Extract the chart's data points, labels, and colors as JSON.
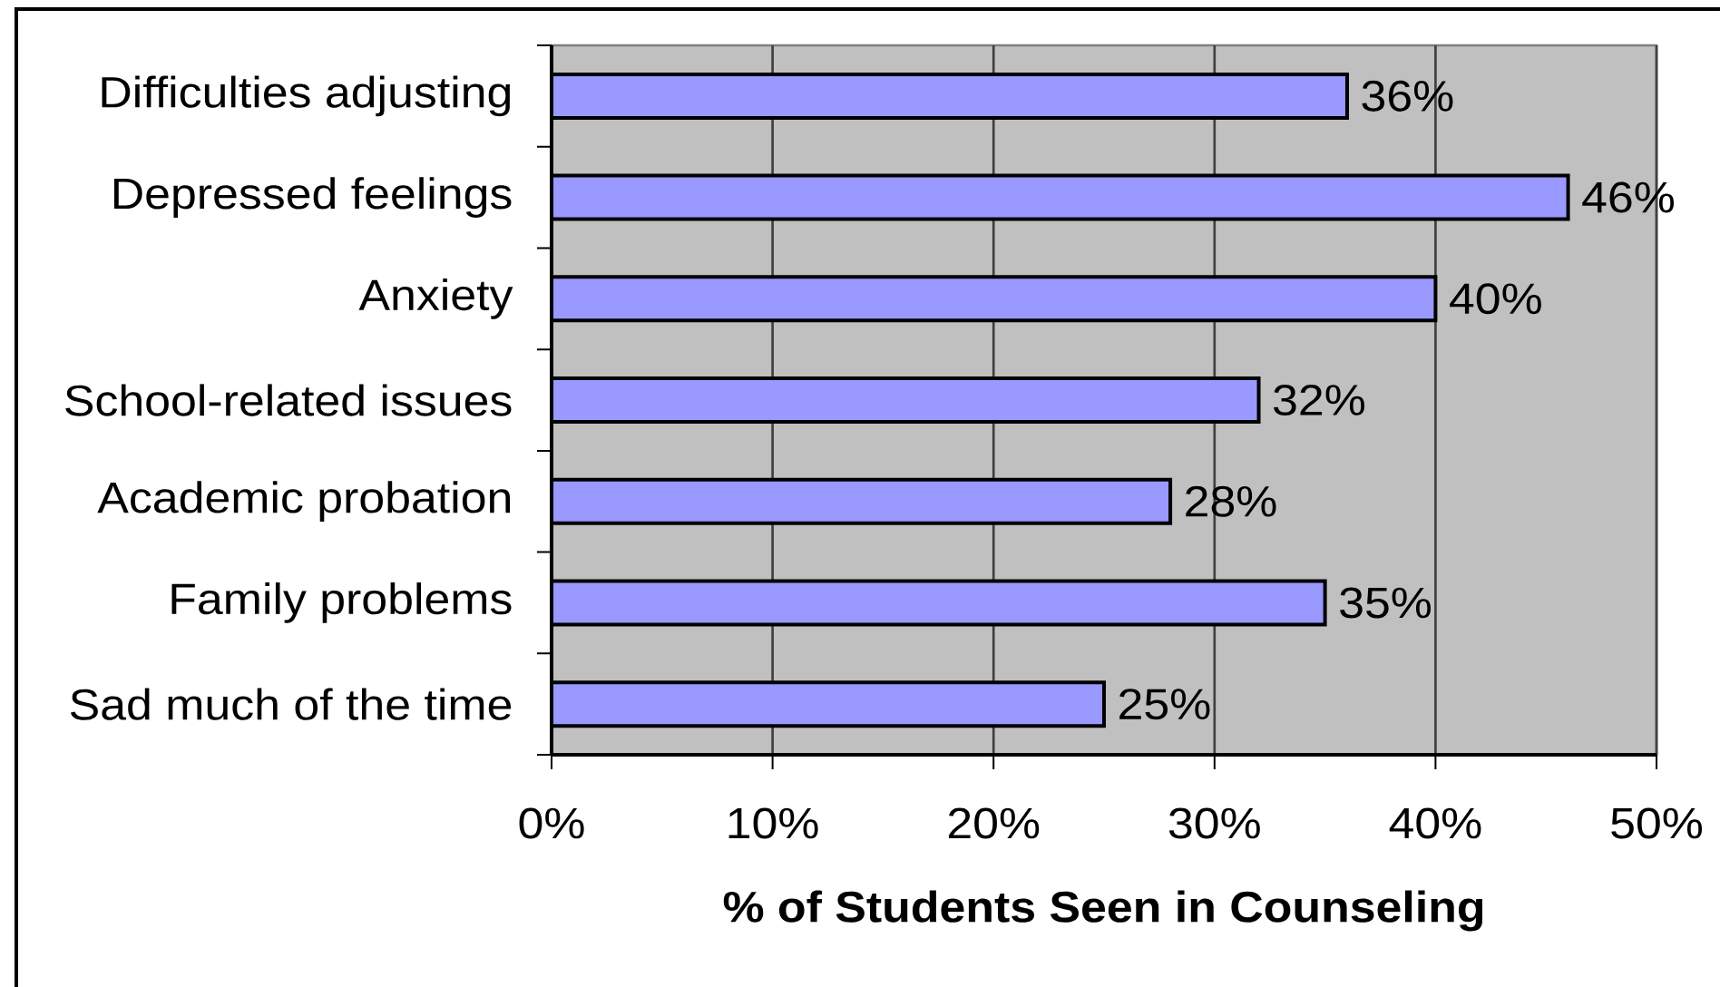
{
  "chart_data": {
    "type": "bar",
    "orientation": "horizontal",
    "xlabel": "% of Students Seen in Counseling",
    "categories": [
      "Difficulties adjusting",
      "Depressed feelings",
      "Anxiety",
      "School-related issues",
      "Academic probation",
      "Family problems",
      "Sad much of the time"
    ],
    "values": [
      36,
      46,
      40,
      32,
      28,
      35,
      25
    ],
    "value_labels": [
      "36%",
      "46%",
      "40%",
      "32%",
      "28%",
      "35%",
      "25%"
    ],
    "color": "#9999ff",
    "xlim": [
      0,
      50
    ],
    "xticks": [
      {
        "value": 0,
        "label": "0%"
      },
      {
        "value": 10,
        "label": "10%"
      },
      {
        "value": 20,
        "label": "20%"
      },
      {
        "value": 30,
        "label": "30%"
      },
      {
        "value": 40,
        "label": "40%"
      },
      {
        "value": 50,
        "label": "50%"
      }
    ],
    "grid": "x"
  }
}
